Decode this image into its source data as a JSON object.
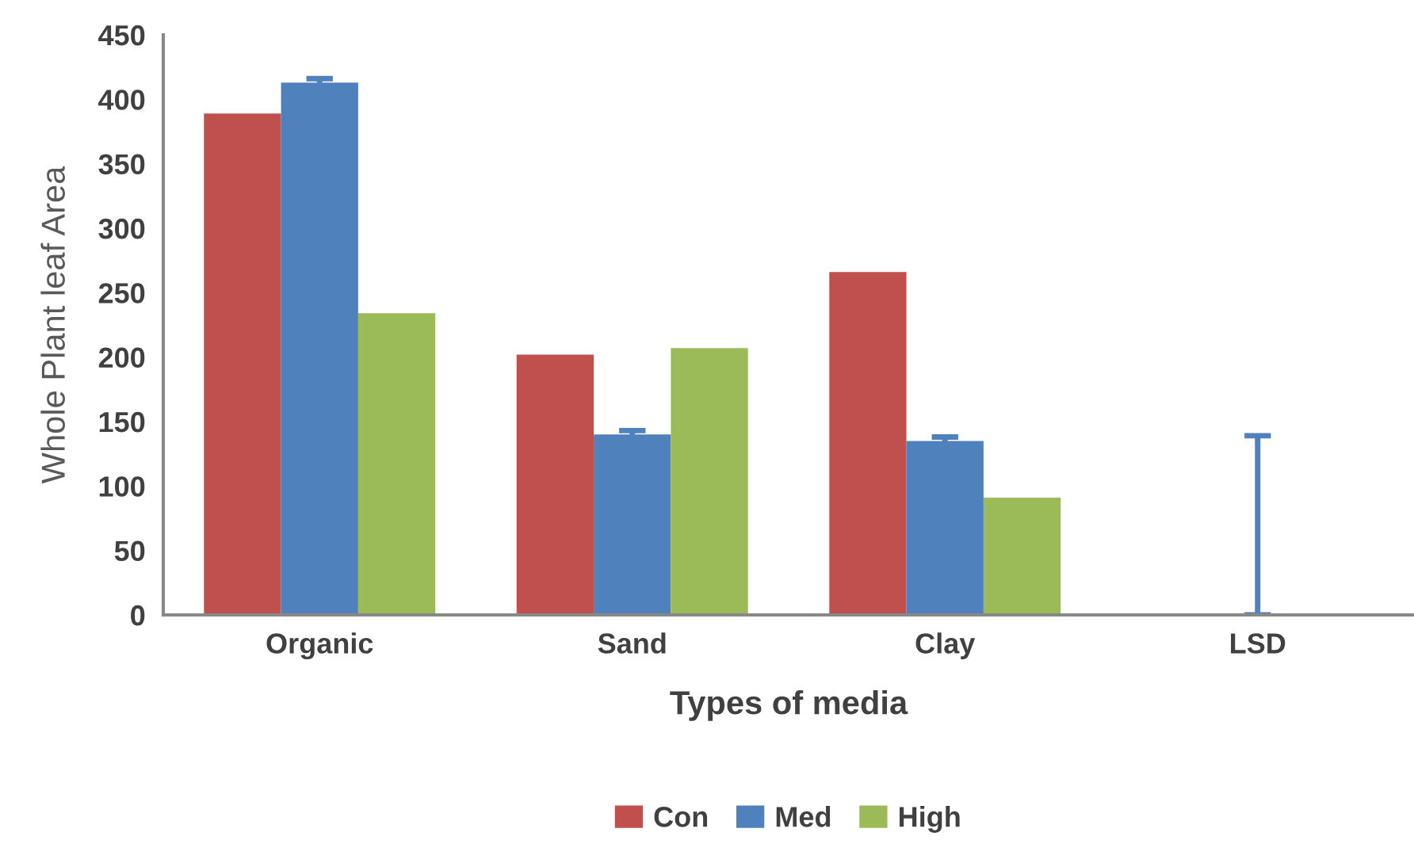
{
  "chart_data": {
    "type": "bar",
    "xlabel": "Types of media",
    "ylabel": "Whole Plant leaf Area",
    "categories": [
      "Organic",
      "Sand",
      "Clay",
      "LSD"
    ],
    "series": [
      {
        "name": "Con",
        "color": "#c0504d",
        "values": [
          389,
          202,
          266,
          null
        ]
      },
      {
        "name": "Med",
        "color": "#4f81bd",
        "values": [
          413,
          140,
          135,
          0
        ],
        "errors": [
          3,
          3,
          3,
          [
            0,
            139
          ]
        ]
      },
      {
        "name": "High",
        "color": "#9bbb59",
        "values": [
          234,
          207,
          91,
          null
        ]
      }
    ],
    "ylim": [
      0,
      450
    ],
    "yticks": [
      0,
      50,
      100,
      150,
      200,
      250,
      300,
      350,
      400,
      450
    ],
    "grid": false,
    "legend": "bottom"
  }
}
